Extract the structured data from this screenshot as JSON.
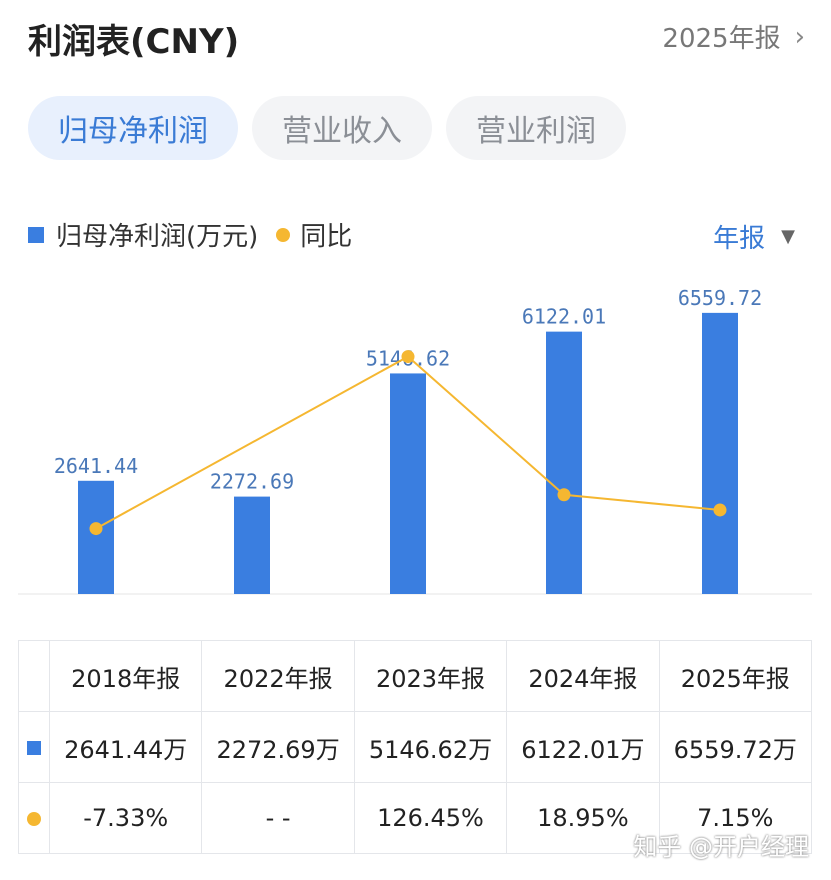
{
  "header": {
    "title": "利润表(CNY)",
    "period_link": "2025年报"
  },
  "tabs": [
    {
      "label": "归母净利润",
      "active": true
    },
    {
      "label": "营业收入",
      "active": false
    },
    {
      "label": "营业利润",
      "active": false
    }
  ],
  "legend": {
    "bar_label": "归母净利润(万元)",
    "line_label": "同比"
  },
  "period_select": "年报",
  "colors": {
    "bar": "#3a7ee0",
    "line": "#f5b731",
    "accent": "#3a7bd5",
    "negative": "#2d9a55",
    "positive": "#d04848"
  },
  "chart_data": {
    "type": "bar",
    "categories": [
      "2018年报",
      "2022年报",
      "2023年报",
      "2024年报",
      "2025年报"
    ],
    "series": [
      {
        "name": "归母净利润(万元)",
        "type": "bar",
        "values": [
          2641.44,
          2272.69,
          5146.62,
          6122.01,
          6559.72
        ]
      },
      {
        "name": "同比",
        "type": "line",
        "values": [
          -7.33,
          null,
          126.45,
          18.95,
          7.15
        ]
      }
    ],
    "bar_labels": [
      "2641.44",
      "2272.69",
      "5146.62",
      "6122.01",
      "6559.72"
    ]
  },
  "table": {
    "headers": [
      "2018年报",
      "2022年报",
      "2023年报",
      "2024年报",
      "2025年报"
    ],
    "values": [
      "2641.44万",
      "2272.69万",
      "5146.62万",
      "6122.01万",
      "6559.72万"
    ],
    "yoy": [
      "-7.33%",
      "- -",
      "126.45%",
      "18.95%",
      "7.15%"
    ]
  },
  "watermark": "知乎 @开户经理"
}
